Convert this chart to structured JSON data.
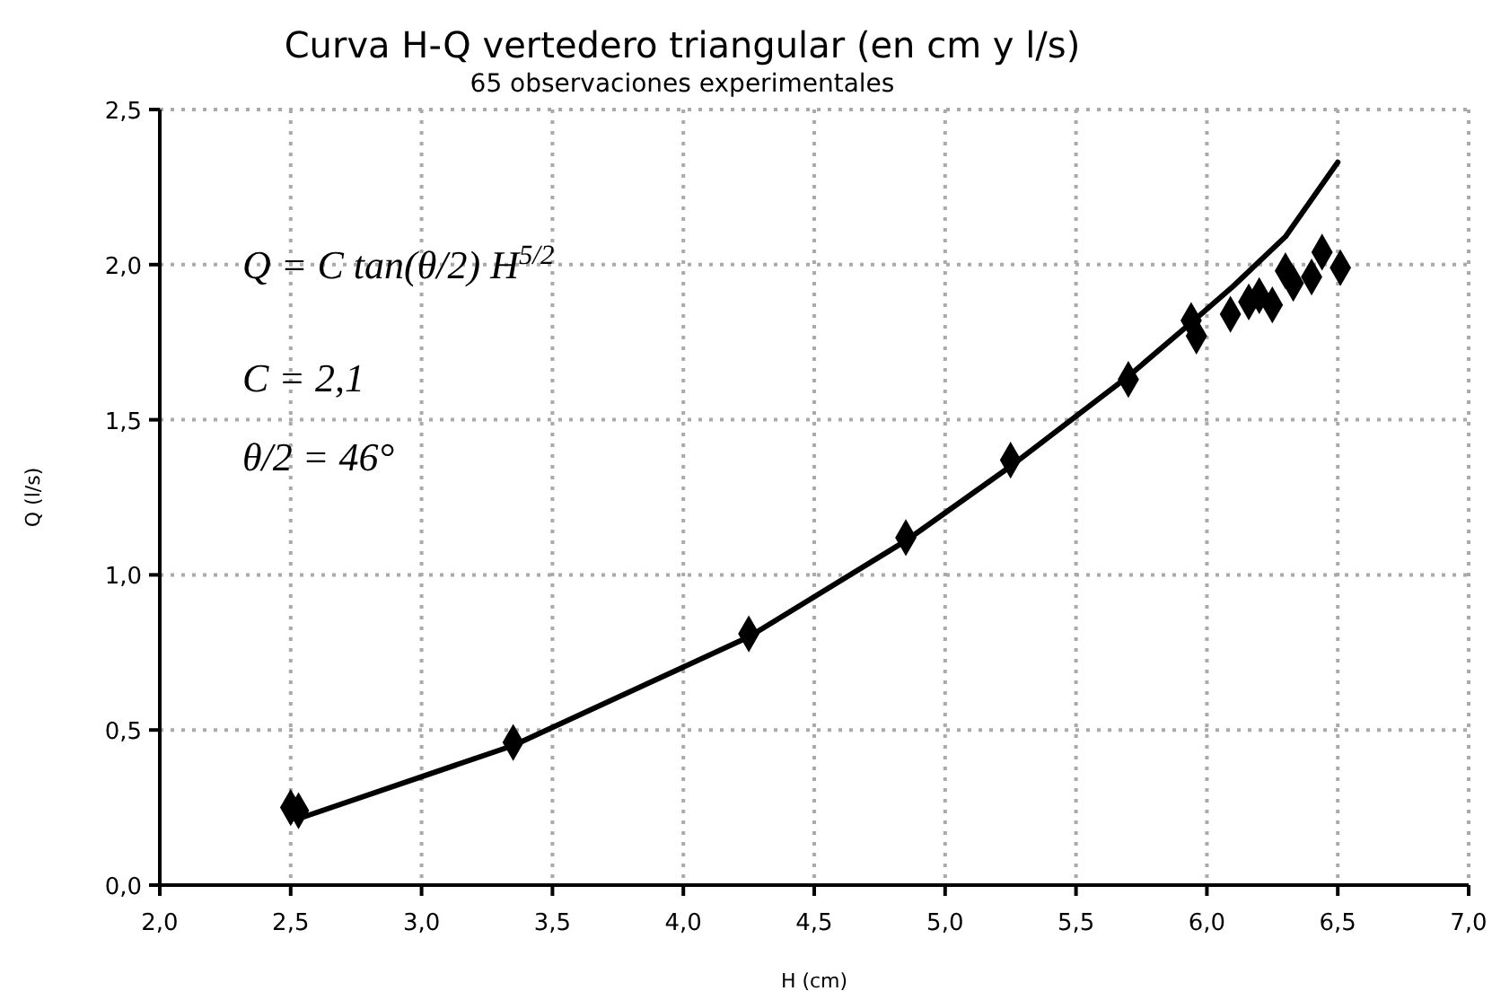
{
  "chart_data": {
    "type": "scatter",
    "title": "Curva H-Q vertedero triangular (en cm y l/s)",
    "subtitle": "65 observaciones experimentales",
    "xlabel": "H (cm)",
    "ylabel": "Q (l/s)",
    "xlim": [
      2.0,
      7.0
    ],
    "ylim": [
      0.0,
      2.5
    ],
    "xticks": [
      {
        "value": 2.0,
        "label": "2,0"
      },
      {
        "value": 2.5,
        "label": "2,5"
      },
      {
        "value": 3.0,
        "label": "3,0"
      },
      {
        "value": 3.5,
        "label": "3,5"
      },
      {
        "value": 4.0,
        "label": "4,0"
      },
      {
        "value": 4.5,
        "label": "4,5"
      },
      {
        "value": 5.0,
        "label": "5,0"
      },
      {
        "value": 5.5,
        "label": "5,5"
      },
      {
        "value": 6.0,
        "label": "6,0"
      },
      {
        "value": 6.5,
        "label": "6,5"
      },
      {
        "value": 7.0,
        "label": "7,0"
      }
    ],
    "yticks": [
      {
        "value": 0.0,
        "label": "0,0"
      },
      {
        "value": 0.5,
        "label": "0,5"
      },
      {
        "value": 1.0,
        "label": "1,0"
      },
      {
        "value": 1.5,
        "label": "1,5"
      },
      {
        "value": 2.0,
        "label": "2,0"
      },
      {
        "value": 2.5,
        "label": "2,5"
      }
    ],
    "grid": true,
    "series": [
      {
        "type": "line",
        "color": "#000000",
        "marker": "none",
        "line_style": "solid",
        "x": [
          2.55,
          3.35,
          4.25,
          4.85,
          5.25,
          5.7,
          5.95,
          6.1,
          6.3,
          6.5
        ],
        "values": [
          0.22,
          0.45,
          0.8,
          1.11,
          1.35,
          1.64,
          1.82,
          1.93,
          2.09,
          2.33
        ]
      },
      {
        "color": "#000000",
        "marker": "diamond",
        "x": [
          2.5,
          2.53,
          3.35,
          4.25,
          4.85,
          5.25,
          5.7,
          5.94,
          5.96,
          6.09,
          6.16,
          6.2,
          6.25,
          6.3,
          6.33,
          6.4,
          6.44,
          6.51
        ],
        "values": [
          0.25,
          0.24,
          0.46,
          0.81,
          1.12,
          1.37,
          1.63,
          1.82,
          1.77,
          1.84,
          1.88,
          1.9,
          1.87,
          1.98,
          1.94,
          1.96,
          2.04,
          1.99
        ]
      }
    ],
    "annotations": [
      "Q = C tan(θ/2) H$^{5/2}$",
      "C = 2,1",
      "θ/2 = 46°"
    ]
  }
}
